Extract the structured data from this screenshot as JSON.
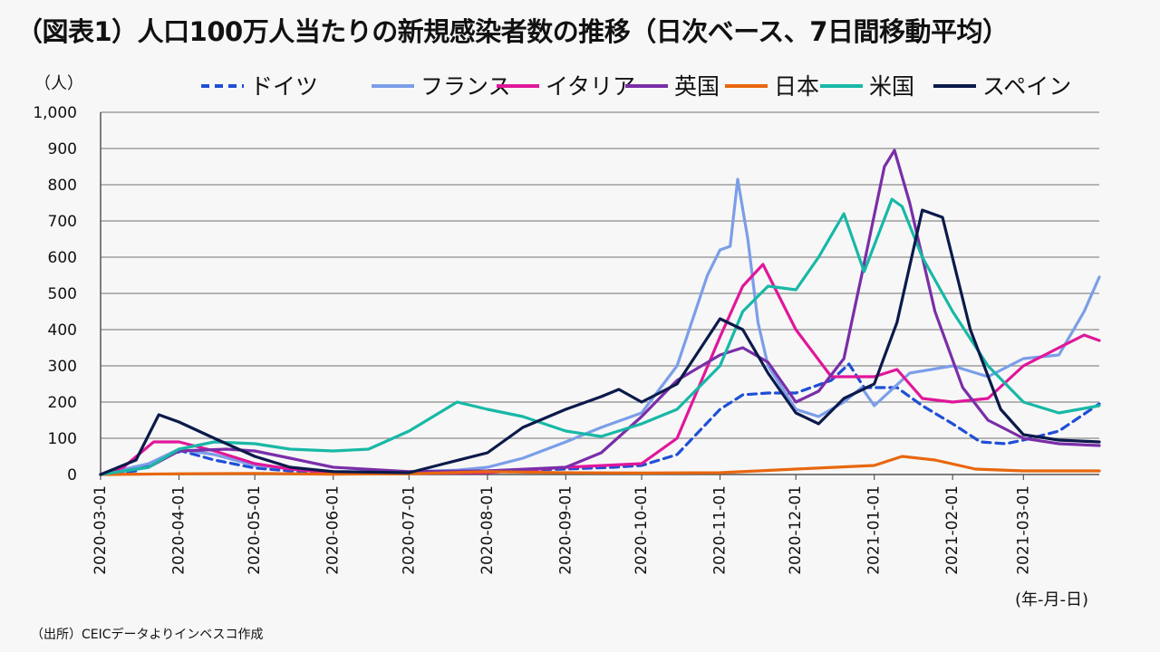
{
  "title": "（図表1）人口100万人当たりの新規感染者数の推移（日次ベース、7日間移動平均）",
  "source": "（出所）CEICデータよりインベスコ作成",
  "chart_data": {
    "type": "line",
    "ylabel": "（人）",
    "xlabel": "(年-月-日)",
    "ylim": [
      0,
      1000
    ],
    "yticks": [
      0,
      100,
      200,
      300,
      400,
      500,
      600,
      700,
      800,
      900,
      1000
    ],
    "ytick_labels": [
      "0",
      "100",
      "200",
      "300",
      "400",
      "500",
      "600",
      "700",
      "800",
      "900",
      "1,000"
    ],
    "xlim": [
      "2020-03-01",
      "2021-03-31"
    ],
    "xtick_labels": [
      "2020-03-01",
      "2020-04-01",
      "2020-05-01",
      "2020-06-01",
      "2020-07-01",
      "2020-08-01",
      "2020-09-01",
      "2020-10-01",
      "2020-11-01",
      "2020-12-01",
      "2021-01-01",
      "2021-02-01",
      "2021-03-01"
    ],
    "grid": true,
    "legend_position": "top",
    "series": [
      {
        "name": "ドイツ",
        "color": "#1f4fd6",
        "dash": true,
        "points": [
          [
            "2020-03-01",
            0
          ],
          [
            "2020-03-15",
            10
          ],
          [
            "2020-03-25",
            45
          ],
          [
            "2020-04-02",
            65
          ],
          [
            "2020-04-15",
            40
          ],
          [
            "2020-05-01",
            18
          ],
          [
            "2020-05-15",
            10
          ],
          [
            "2020-06-01",
            6
          ],
          [
            "2020-07-01",
            4
          ],
          [
            "2020-08-01",
            10
          ],
          [
            "2020-09-01",
            15
          ],
          [
            "2020-09-20",
            20
          ],
          [
            "2020-10-01",
            25
          ],
          [
            "2020-10-15",
            55
          ],
          [
            "2020-11-01",
            180
          ],
          [
            "2020-11-10",
            220
          ],
          [
            "2020-11-20",
            225
          ],
          [
            "2020-12-01",
            225
          ],
          [
            "2020-12-15",
            260
          ],
          [
            "2020-12-22",
            305
          ],
          [
            "2020-12-28",
            240
          ],
          [
            "2021-01-10",
            240
          ],
          [
            "2021-01-20",
            190
          ],
          [
            "2021-02-01",
            140
          ],
          [
            "2021-02-12",
            90
          ],
          [
            "2021-02-22",
            85
          ],
          [
            "2021-03-01",
            95
          ],
          [
            "2021-03-15",
            120
          ],
          [
            "2021-03-31",
            195
          ]
        ]
      },
      {
        "name": "フランス",
        "color": "#7b9ee8",
        "dash": false,
        "points": [
          [
            "2020-03-01",
            0
          ],
          [
            "2020-03-20",
            30
          ],
          [
            "2020-04-01",
            70
          ],
          [
            "2020-04-15",
            55
          ],
          [
            "2020-05-01",
            25
          ],
          [
            "2020-06-01",
            8
          ],
          [
            "2020-07-01",
            8
          ],
          [
            "2020-07-20",
            12
          ],
          [
            "2020-08-01",
            20
          ],
          [
            "2020-08-15",
            45
          ],
          [
            "2020-09-01",
            90
          ],
          [
            "2020-09-15",
            130
          ],
          [
            "2020-10-01",
            170
          ],
          [
            "2020-10-15",
            300
          ],
          [
            "2020-10-27",
            550
          ],
          [
            "2020-11-01",
            620
          ],
          [
            "2020-11-05",
            630
          ],
          [
            "2020-11-08",
            815
          ],
          [
            "2020-11-12",
            650
          ],
          [
            "2020-11-16",
            420
          ],
          [
            "2020-11-20",
            300
          ],
          [
            "2020-12-01",
            180
          ],
          [
            "2020-12-10",
            160
          ],
          [
            "2020-12-20",
            200
          ],
          [
            "2020-12-27",
            240
          ],
          [
            "2021-01-01",
            190
          ],
          [
            "2021-01-15",
            280
          ],
          [
            "2021-02-01",
            300
          ],
          [
            "2021-02-15",
            270
          ],
          [
            "2021-03-01",
            320
          ],
          [
            "2021-03-15",
            330
          ],
          [
            "2021-03-25",
            450
          ],
          [
            "2021-03-31",
            545
          ]
        ]
      },
      {
        "name": "イタリア",
        "color": "#e0179a",
        "dash": false,
        "points": [
          [
            "2020-03-01",
            0
          ],
          [
            "2020-03-10",
            20
          ],
          [
            "2020-03-22",
            90
          ],
          [
            "2020-04-01",
            90
          ],
          [
            "2020-04-15",
            65
          ],
          [
            "2020-05-01",
            30
          ],
          [
            "2020-05-15",
            15
          ],
          [
            "2020-06-01",
            5
          ],
          [
            "2020-07-01",
            3
          ],
          [
            "2020-08-01",
            5
          ],
          [
            "2020-09-01",
            20
          ],
          [
            "2020-10-01",
            30
          ],
          [
            "2020-10-15",
            100
          ],
          [
            "2020-11-01",
            380
          ],
          [
            "2020-11-10",
            520
          ],
          [
            "2020-11-18",
            580
          ],
          [
            "2020-12-01",
            400
          ],
          [
            "2020-12-15",
            270
          ],
          [
            "2021-01-01",
            270
          ],
          [
            "2021-01-10",
            290
          ],
          [
            "2021-01-20",
            210
          ],
          [
            "2021-02-01",
            200
          ],
          [
            "2021-02-15",
            210
          ],
          [
            "2021-03-01",
            300
          ],
          [
            "2021-03-15",
            350
          ],
          [
            "2021-03-25",
            385
          ],
          [
            "2021-03-31",
            370
          ]
        ]
      },
      {
        "name": "英国",
        "color": "#7a2ea8",
        "dash": false,
        "points": [
          [
            "2020-03-01",
            0
          ],
          [
            "2020-03-20",
            20
          ],
          [
            "2020-04-01",
            65
          ],
          [
            "2020-04-20",
            70
          ],
          [
            "2020-05-01",
            65
          ],
          [
            "2020-05-15",
            45
          ],
          [
            "2020-06-01",
            20
          ],
          [
            "2020-07-01",
            8
          ],
          [
            "2020-08-01",
            10
          ],
          [
            "2020-09-01",
            20
          ],
          [
            "2020-09-15",
            60
          ],
          [
            "2020-10-01",
            160
          ],
          [
            "2020-10-15",
            260
          ],
          [
            "2020-11-01",
            330
          ],
          [
            "2020-11-10",
            350
          ],
          [
            "2020-11-20",
            310
          ],
          [
            "2020-12-01",
            200
          ],
          [
            "2020-12-10",
            230
          ],
          [
            "2020-12-20",
            320
          ],
          [
            "2020-12-27",
            550
          ],
          [
            "2021-01-05",
            850
          ],
          [
            "2021-01-09",
            895
          ],
          [
            "2021-01-15",
            750
          ],
          [
            "2021-01-25",
            450
          ],
          [
            "2021-02-05",
            240
          ],
          [
            "2021-02-15",
            150
          ],
          [
            "2021-03-01",
            100
          ],
          [
            "2021-03-15",
            85
          ],
          [
            "2021-03-31",
            80
          ]
        ]
      },
      {
        "name": "日本",
        "color": "#e8670e",
        "dash": false,
        "points": [
          [
            "2020-03-01",
            0
          ],
          [
            "2020-04-01",
            2
          ],
          [
            "2020-05-01",
            3
          ],
          [
            "2020-06-01",
            1
          ],
          [
            "2020-07-01",
            2
          ],
          [
            "2020-08-01",
            8
          ],
          [
            "2020-09-01",
            5
          ],
          [
            "2020-10-01",
            4
          ],
          [
            "2020-11-01",
            5
          ],
          [
            "2020-12-01",
            15
          ],
          [
            "2021-01-01",
            25
          ],
          [
            "2021-01-12",
            50
          ],
          [
            "2021-01-25",
            40
          ],
          [
            "2021-02-10",
            15
          ],
          [
            "2021-03-01",
            10
          ],
          [
            "2021-03-31",
            10
          ]
        ]
      },
      {
        "name": "米国",
        "color": "#18b8a6",
        "dash": false,
        "points": [
          [
            "2020-03-01",
            0
          ],
          [
            "2020-03-20",
            20
          ],
          [
            "2020-04-01",
            70
          ],
          [
            "2020-04-15",
            90
          ],
          [
            "2020-05-01",
            85
          ],
          [
            "2020-05-15",
            70
          ],
          [
            "2020-06-01",
            65
          ],
          [
            "2020-06-15",
            70
          ],
          [
            "2020-07-01",
            120
          ],
          [
            "2020-07-20",
            200
          ],
          [
            "2020-08-01",
            180
          ],
          [
            "2020-08-15",
            160
          ],
          [
            "2020-09-01",
            120
          ],
          [
            "2020-09-15",
            105
          ],
          [
            "2020-10-01",
            140
          ],
          [
            "2020-10-15",
            180
          ],
          [
            "2020-11-01",
            300
          ],
          [
            "2020-11-10",
            450
          ],
          [
            "2020-11-20",
            520
          ],
          [
            "2020-12-01",
            510
          ],
          [
            "2020-12-10",
            600
          ],
          [
            "2020-12-20",
            720
          ],
          [
            "2020-12-28",
            560
          ],
          [
            "2021-01-08",
            760
          ],
          [
            "2021-01-12",
            740
          ],
          [
            "2021-01-20",
            600
          ],
          [
            "2021-02-01",
            450
          ],
          [
            "2021-02-15",
            300
          ],
          [
            "2021-03-01",
            200
          ],
          [
            "2021-03-15",
            170
          ],
          [
            "2021-03-31",
            190
          ]
        ]
      },
      {
        "name": "スペイン",
        "color": "#0b1a4a",
        "dash": false,
        "points": [
          [
            "2020-03-01",
            0
          ],
          [
            "2020-03-15",
            40
          ],
          [
            "2020-03-24",
            165
          ],
          [
            "2020-04-01",
            145
          ],
          [
            "2020-04-15",
            100
          ],
          [
            "2020-05-01",
            50
          ],
          [
            "2020-05-15",
            20
          ],
          [
            "2020-06-01",
            8
          ],
          [
            "2020-07-01",
            5
          ],
          [
            "2020-07-15",
            30
          ],
          [
            "2020-08-01",
            60
          ],
          [
            "2020-08-15",
            130
          ],
          [
            "2020-09-01",
            180
          ],
          [
            "2020-09-15",
            215
          ],
          [
            "2020-09-22",
            235
          ],
          [
            "2020-10-01",
            200
          ],
          [
            "2020-10-15",
            250
          ],
          [
            "2020-11-01",
            430
          ],
          [
            "2020-11-10",
            400
          ],
          [
            "2020-11-20",
            280
          ],
          [
            "2020-12-01",
            170
          ],
          [
            "2020-12-10",
            140
          ],
          [
            "2020-12-20",
            210
          ],
          [
            "2021-01-01",
            250
          ],
          [
            "2021-01-10",
            420
          ],
          [
            "2021-01-20",
            730
          ],
          [
            "2021-01-28",
            710
          ],
          [
            "2021-02-08",
            400
          ],
          [
            "2021-02-20",
            180
          ],
          [
            "2021-03-01",
            110
          ],
          [
            "2021-03-15",
            95
          ],
          [
            "2021-03-31",
            90
          ]
        ]
      }
    ]
  }
}
